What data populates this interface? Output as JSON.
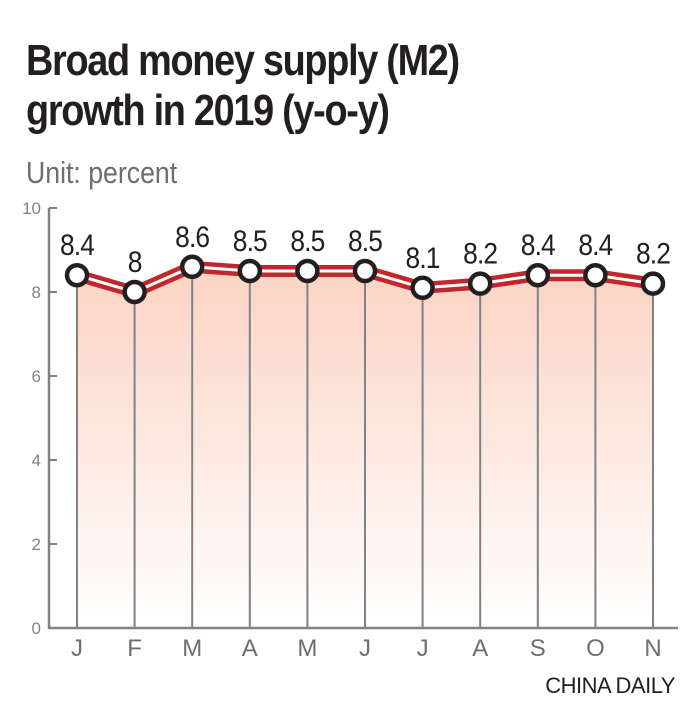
{
  "chart_data": {
    "type": "line",
    "title": "Broad money supply (M2) growth in 2019 (y-o-y)",
    "title_lines": [
      "Broad money supply (M2)",
      "growth in 2019 (y-o-y)"
    ],
    "subtitle": "Unit: percent",
    "xlabel": "",
    "ylabel": "",
    "categories": [
      "J",
      "F",
      "M",
      "A",
      "M",
      "J",
      "J",
      "A",
      "S",
      "O",
      "N"
    ],
    "series": [
      {
        "name": "M2 growth",
        "values": [
          8.4,
          8,
          8.6,
          8.5,
          8.5,
          8.5,
          8.1,
          8.2,
          8.4,
          8.4,
          8.2
        ],
        "labels": [
          "8.4",
          "8",
          "8.6",
          "8.5",
          "8.5",
          "8.5",
          "8.1",
          "8.2",
          "8.4",
          "8.4",
          "8.2"
        ]
      }
    ],
    "ylim": [
      0,
      10
    ],
    "yticks": [
      0,
      2,
      4,
      6,
      8,
      10
    ],
    "grid": false,
    "area_fill": true,
    "source": "CHINA DAILY",
    "colors": {
      "line": "#c1272d",
      "fill_top": "#fbd3c3",
      "axis": "#808285",
      "marker_stroke": "#231f20"
    }
  }
}
